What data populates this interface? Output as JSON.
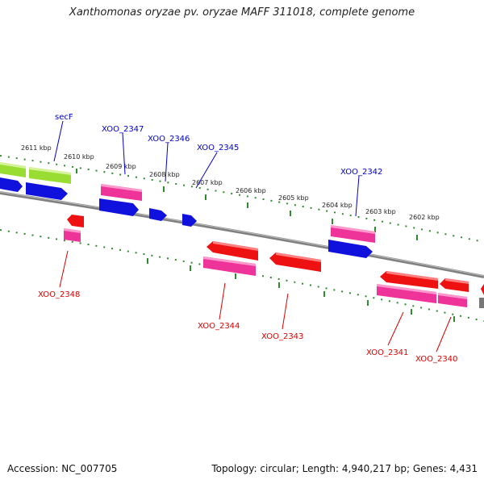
{
  "title": "Xanthomonas oryzae pv. oryzae MAFF 311018, complete genome",
  "accession": "Accession: NC_007705",
  "summary": "Topology: circular; Length: 4,940,217 bp; Genes: 4,431",
  "colors": {
    "backbone": "#808080",
    "tick_dots": "#2e8b2e",
    "forward_label": "#0000cc",
    "reverse_label": "#dd0000",
    "gene_green": "#99dd33",
    "gene_blue": "#1111dd",
    "gene_magenta": "#ee3399",
    "gene_red": "#ee1111"
  },
  "scale_labels": [
    "2611 kbp",
    "2610 kbp",
    "2609 kbp",
    "2608 kbp",
    "2607 kbp",
    "2606 kbp",
    "2605 kbp",
    "2604 kbp",
    "2603 kbp",
    "2602 kbp"
  ],
  "forward_gene_labels": [
    "secF",
    "XOO_2347",
    "XOO_2346",
    "XOO_2345",
    "XOO_2342"
  ],
  "reverse_gene_labels": [
    "XOO_2348",
    "XOO_2344",
    "XOO_2343",
    "XOO_2341",
    "XOO_2340"
  ]
}
